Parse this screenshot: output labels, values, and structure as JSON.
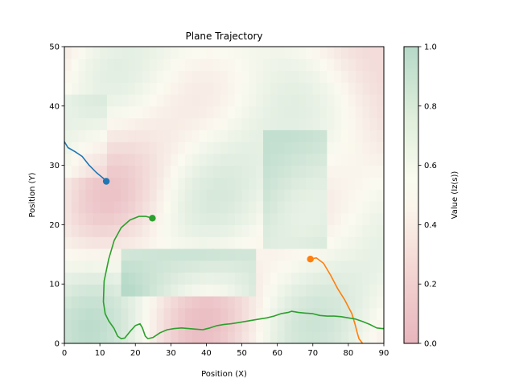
{
  "chart_data": {
    "type": "line",
    "title": "Plane Trajectory",
    "xlabel": "Position (X)",
    "ylabel": "Position (Y)",
    "xlim": [
      0,
      90
    ],
    "ylim": [
      0,
      50
    ],
    "xticks": [
      "0",
      "10",
      "20",
      "30",
      "40",
      "50",
      "60",
      "70",
      "80",
      "90"
    ],
    "yticks": [
      "0",
      "10",
      "20",
      "30",
      "40",
      "50"
    ],
    "grid": false,
    "background": "heatmap of Value (Iz(s)), pink (0.0) to white (0.5) to green (1.0), semi-transparent",
    "colorbar": {
      "label": "Value (Iz(s))",
      "range": [
        0.0,
        1.0
      ],
      "ticks": [
        "0.0",
        "0.2",
        "0.4",
        "0.6",
        "0.8",
        "1.0"
      ],
      "colors": [
        "#e8b5bd",
        "#f9eee2",
        "#fbfbf0",
        "#e3f0dd",
        "#b2d8c6"
      ]
    },
    "series": [
      {
        "color": "#1f77b4",
        "points": [
          [
            0,
            34
          ],
          [
            1,
            33
          ],
          [
            3,
            32.3
          ],
          [
            5,
            31.5
          ],
          [
            7,
            30
          ],
          [
            9,
            28.8
          ],
          [
            11,
            27.8
          ],
          [
            11.8,
            27.3
          ]
        ],
        "end_marker": [
          11.8,
          27.3
        ]
      },
      {
        "color": "#ff7f0e",
        "points": [
          [
            69.3,
            14.2
          ],
          [
            71,
            14.4
          ],
          [
            73,
            13.5
          ],
          [
            75,
            11.5
          ],
          [
            77,
            9.2
          ],
          [
            79,
            7.3
          ],
          [
            81,
            5.0
          ],
          [
            82,
            3.0
          ],
          [
            82.5,
            1.8
          ],
          [
            83,
            0.8
          ],
          [
            84,
            0
          ]
        ],
        "end_marker": [
          69.3,
          14.2
        ]
      },
      {
        "color": "#2ca02c",
        "points": [
          [
            24.8,
            21.1
          ],
          [
            23,
            21.4
          ],
          [
            21,
            21.4
          ],
          [
            18.5,
            20.8
          ],
          [
            16,
            19.5
          ],
          [
            14,
            17.3
          ],
          [
            12.5,
            14.2
          ],
          [
            11.2,
            10.5
          ],
          [
            11,
            7
          ],
          [
            11.5,
            5
          ],
          [
            12.5,
            3.8
          ],
          [
            14,
            2.5
          ],
          [
            15,
            1.2
          ],
          [
            16,
            0.8
          ],
          [
            17,
            0.9
          ],
          [
            18.5,
            2.0
          ],
          [
            20,
            3.0
          ],
          [
            21.3,
            3.3
          ],
          [
            22,
            2.6
          ],
          [
            22.8,
            1.2
          ],
          [
            23.5,
            0.8
          ],
          [
            25,
            1.0
          ],
          [
            27,
            1.8
          ],
          [
            29,
            2.3
          ],
          [
            31,
            2.5
          ],
          [
            33,
            2.6
          ],
          [
            35,
            2.5
          ],
          [
            37,
            2.4
          ],
          [
            39,
            2.3
          ],
          [
            41,
            2.6
          ],
          [
            43,
            3.0
          ],
          [
            45,
            3.2
          ],
          [
            47,
            3.3
          ],
          [
            49,
            3.5
          ],
          [
            51,
            3.7
          ],
          [
            53,
            3.9
          ],
          [
            55,
            4.1
          ],
          [
            57,
            4.3
          ],
          [
            59,
            4.6
          ],
          [
            61,
            5.0
          ],
          [
            63,
            5.2
          ],
          [
            64,
            5.4
          ],
          [
            66,
            5.2
          ],
          [
            68,
            5.1
          ],
          [
            70,
            5.0
          ],
          [
            72,
            4.7
          ],
          [
            74,
            4.6
          ],
          [
            76,
            4.6
          ],
          [
            78,
            4.5
          ],
          [
            80,
            4.3
          ],
          [
            82,
            4.1
          ],
          [
            84,
            3.7
          ],
          [
            86,
            3.2
          ],
          [
            88,
            2.6
          ],
          [
            89.5,
            2.5
          ],
          [
            90,
            2.5
          ]
        ],
        "end_marker": [
          24.8,
          21.1
        ]
      }
    ]
  }
}
